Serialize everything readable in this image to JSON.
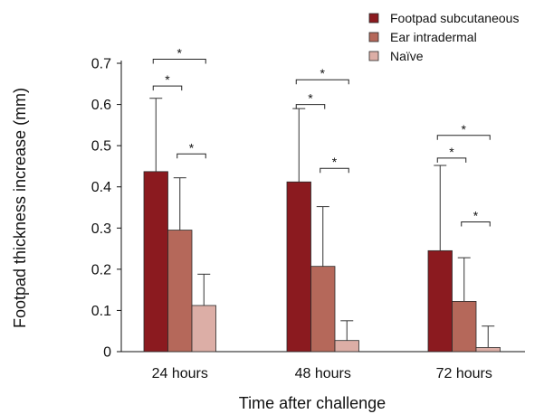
{
  "chart_data": {
    "type": "bar",
    "title": "",
    "xlabel": "Time after challenge",
    "ylabel": "Footpad thickness increase (mm)",
    "ylim": [
      0,
      0.7
    ],
    "yticks": [
      "0",
      "0.1",
      "0.2",
      "0.3",
      "0.4",
      "0.5",
      "0.6",
      "0.7"
    ],
    "categories": [
      "24 hours",
      "48 hours",
      "72 hours"
    ],
    "grid": false,
    "legend_position": "top-right",
    "series": [
      {
        "name": "Footpad subcutaneous",
        "color": "#8b1a1f",
        "values": [
          0.437,
          0.412,
          0.245
        ],
        "error_upper": [
          0.615,
          0.59,
          0.452
        ]
      },
      {
        "name": "Ear intradermal",
        "color": "#b5685a",
        "values": [
          0.295,
          0.207,
          0.122
        ],
        "error_upper": [
          0.422,
          0.352,
          0.228
        ]
      },
      {
        "name": "Naïve",
        "color": "#dcaea6",
        "values": [
          0.112,
          0.027,
          0.01
        ],
        "error_upper": [
          0.188,
          0.075,
          0.062
        ]
      }
    ],
    "significance": [
      {
        "category": 0,
        "from_series": 0,
        "to_series": 2,
        "level": 0.71,
        "label": "*"
      },
      {
        "category": 0,
        "from_series": 0,
        "to_series": 1,
        "level": 0.645,
        "label": "*"
      },
      {
        "category": 0,
        "from_series": 1,
        "to_series": 2,
        "level": 0.48,
        "label": "*"
      },
      {
        "category": 1,
        "from_series": 0,
        "to_series": 2,
        "level": 0.66,
        "label": "*"
      },
      {
        "category": 1,
        "from_series": 0,
        "to_series": 1,
        "level": 0.6,
        "label": "*"
      },
      {
        "category": 1,
        "from_series": 1,
        "to_series": 2,
        "level": 0.445,
        "label": "*"
      },
      {
        "category": 2,
        "from_series": 0,
        "to_series": 2,
        "level": 0.525,
        "label": "*"
      },
      {
        "category": 2,
        "from_series": 0,
        "to_series": 1,
        "level": 0.47,
        "label": "*"
      },
      {
        "category": 2,
        "from_series": 1,
        "to_series": 2,
        "level": 0.315,
        "label": "*"
      }
    ]
  }
}
